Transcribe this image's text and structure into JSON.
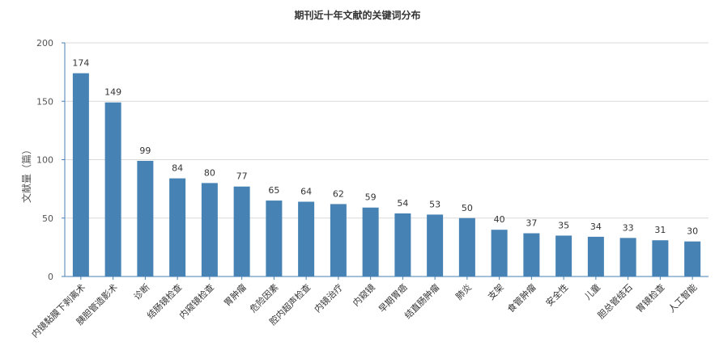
{
  "chart_data": {
    "type": "bar",
    "title": "期刊近十年文献的关键词分布",
    "xlabel": "",
    "ylabel": "文献量（篇）",
    "ylim": [
      0,
      200
    ],
    "yticks": [
      0,
      50,
      100,
      150,
      200
    ],
    "grid": true,
    "bar_color": "#4682b4",
    "categories": [
      "内镜黏膜下剥离术",
      "胰胆管造影术",
      "诊断",
      "结肠镜检查",
      "内窥镜检查",
      "胃肿瘤",
      "危险因素",
      "腔内超声检查",
      "内镜治疗",
      "内窥镜",
      "早期胃癌",
      "结直肠肿瘤",
      "肺炎",
      "支架",
      "食管肿瘤",
      "安全性",
      "儿童",
      "胆总管结石",
      "胃镜检查",
      "人工智能"
    ],
    "values": [
      174,
      149,
      99,
      84,
      80,
      77,
      65,
      64,
      62,
      59,
      54,
      53,
      50,
      40,
      37,
      35,
      34,
      33,
      31,
      30
    ]
  }
}
